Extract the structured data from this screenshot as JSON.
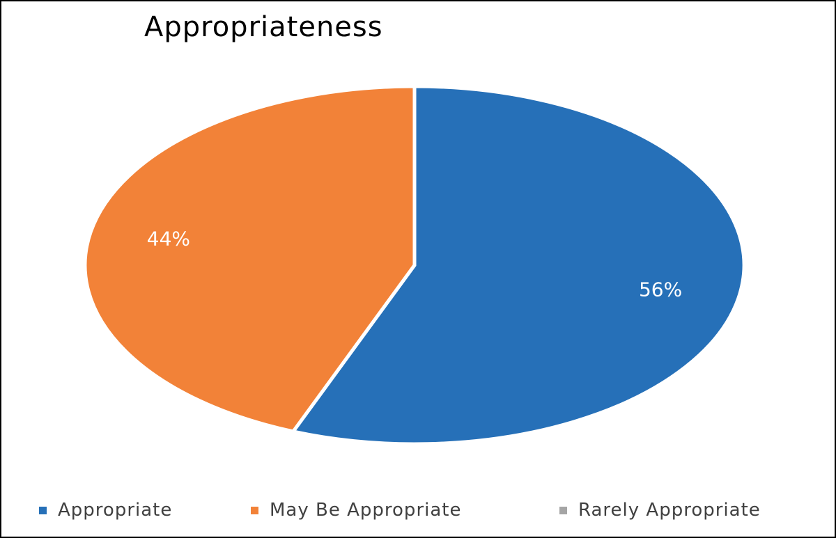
{
  "chart_data": {
    "type": "pie",
    "title": "Appropriateness",
    "series": [
      {
        "name": "Appropriate",
        "value": 56,
        "label": "56%",
        "color": "#2670B8"
      },
      {
        "name": "May Be Appropriate",
        "value": 44,
        "label": "44%",
        "color": "#F28238"
      },
      {
        "name": "Rarely Appropriate",
        "value": 0,
        "label": "",
        "color": "#A5A5A5"
      }
    ],
    "legend_position": "bottom"
  }
}
